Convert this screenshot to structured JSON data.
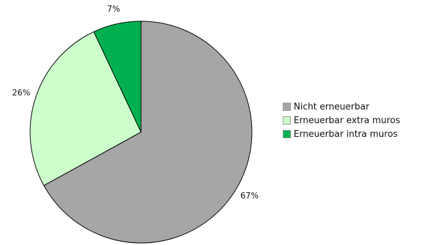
{
  "chart_data": {
    "type": "pie",
    "categories": [
      "Nicht erneuerbar",
      "Erneuerbar extra muros",
      "Erneuerbar intra muros"
    ],
    "values": [
      67,
      26,
      7
    ],
    "labels": [
      "67%",
      "26%",
      "7%"
    ],
    "colors": [
      "#a6a6a6",
      "#ccffcc",
      "#00b050"
    ],
    "start_angle": "12 o'clock",
    "direction": "clockwise",
    "legend_placement": "right",
    "title": ""
  }
}
